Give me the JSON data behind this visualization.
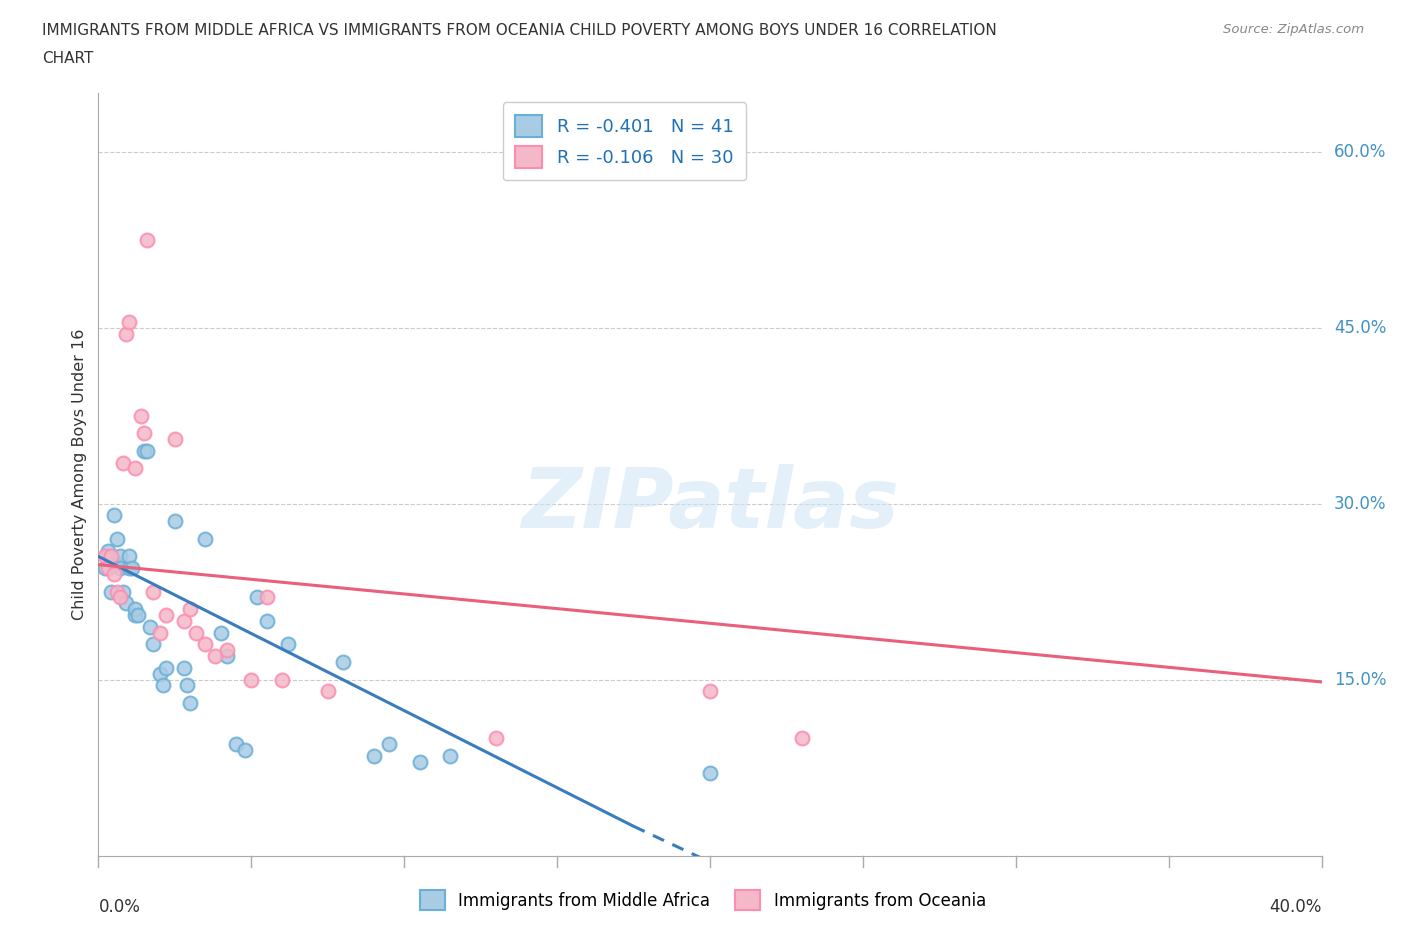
{
  "title_line1": "IMMIGRANTS FROM MIDDLE AFRICA VS IMMIGRANTS FROM OCEANIA CHILD POVERTY AMONG BOYS UNDER 16 CORRELATION",
  "title_line2": "CHART",
  "source_text": "Source: ZipAtlas.com",
  "ylabel": "Child Poverty Among Boys Under 16",
  "xlim": [
    0.0,
    0.4
  ],
  "ylim": [
    0.0,
    0.65
  ],
  "x_tick_positions": [
    0.0,
    0.05,
    0.1,
    0.15,
    0.2,
    0.25,
    0.3,
    0.35,
    0.4
  ],
  "x_tick_labels_show": [
    "0.0%",
    "40.0%"
  ],
  "y_ticks": [
    0.15,
    0.3,
    0.45,
    0.6
  ],
  "y_tick_labels": [
    "15.0%",
    "30.0%",
    "45.0%",
    "60.0%"
  ],
  "watermark": "ZIPatlas",
  "blue_color": "#a8cce4",
  "pink_color": "#f4b8c8",
  "blue_edge_color": "#6baed6",
  "pink_edge_color": "#fc8db0",
  "blue_line_color": "#3a7dbf",
  "pink_line_color": "#e8607a",
  "R_blue": -0.401,
  "N_blue": 41,
  "R_pink": -0.106,
  "N_pink": 30,
  "legend_label_blue": "Immigrants from Middle Africa",
  "legend_label_pink": "Immigrants from Oceania",
  "blue_scatter": [
    [
      0.002,
      0.245
    ],
    [
      0.003,
      0.26
    ],
    [
      0.004,
      0.225
    ],
    [
      0.005,
      0.25
    ],
    [
      0.005,
      0.29
    ],
    [
      0.006,
      0.27
    ],
    [
      0.007,
      0.255
    ],
    [
      0.007,
      0.245
    ],
    [
      0.008,
      0.225
    ],
    [
      0.009,
      0.215
    ],
    [
      0.01,
      0.245
    ],
    [
      0.01,
      0.255
    ],
    [
      0.011,
      0.245
    ],
    [
      0.012,
      0.205
    ],
    [
      0.012,
      0.21
    ],
    [
      0.013,
      0.205
    ],
    [
      0.015,
      0.345
    ],
    [
      0.016,
      0.345
    ],
    [
      0.017,
      0.195
    ],
    [
      0.018,
      0.18
    ],
    [
      0.02,
      0.155
    ],
    [
      0.021,
      0.145
    ],
    [
      0.022,
      0.16
    ],
    [
      0.025,
      0.285
    ],
    [
      0.028,
      0.16
    ],
    [
      0.029,
      0.145
    ],
    [
      0.03,
      0.13
    ],
    [
      0.035,
      0.27
    ],
    [
      0.04,
      0.19
    ],
    [
      0.042,
      0.17
    ],
    [
      0.045,
      0.095
    ],
    [
      0.048,
      0.09
    ],
    [
      0.052,
      0.22
    ],
    [
      0.055,
      0.2
    ],
    [
      0.062,
      0.18
    ],
    [
      0.08,
      0.165
    ],
    [
      0.09,
      0.085
    ],
    [
      0.095,
      0.095
    ],
    [
      0.105,
      0.08
    ],
    [
      0.115,
      0.085
    ],
    [
      0.2,
      0.07
    ]
  ],
  "pink_scatter": [
    [
      0.002,
      0.255
    ],
    [
      0.003,
      0.245
    ],
    [
      0.004,
      0.255
    ],
    [
      0.005,
      0.24
    ],
    [
      0.006,
      0.225
    ],
    [
      0.007,
      0.22
    ],
    [
      0.008,
      0.335
    ],
    [
      0.009,
      0.445
    ],
    [
      0.01,
      0.455
    ],
    [
      0.012,
      0.33
    ],
    [
      0.014,
      0.375
    ],
    [
      0.015,
      0.36
    ],
    [
      0.016,
      0.525
    ],
    [
      0.018,
      0.225
    ],
    [
      0.02,
      0.19
    ],
    [
      0.022,
      0.205
    ],
    [
      0.025,
      0.355
    ],
    [
      0.028,
      0.2
    ],
    [
      0.03,
      0.21
    ],
    [
      0.032,
      0.19
    ],
    [
      0.035,
      0.18
    ],
    [
      0.038,
      0.17
    ],
    [
      0.042,
      0.175
    ],
    [
      0.05,
      0.15
    ],
    [
      0.055,
      0.22
    ],
    [
      0.06,
      0.15
    ],
    [
      0.075,
      0.14
    ],
    [
      0.13,
      0.1
    ],
    [
      0.2,
      0.14
    ],
    [
      0.23,
      0.1
    ]
  ],
  "blue_trendline_solid": [
    [
      0.0,
      0.255
    ],
    [
      0.175,
      0.025
    ]
  ],
  "blue_trendline_dashed": [
    [
      0.175,
      0.025
    ],
    [
      0.22,
      -0.03
    ]
  ],
  "pink_trendline": [
    [
      0.0,
      0.248
    ],
    [
      0.4,
      0.148
    ]
  ],
  "grid_color": "#cccccc",
  "bg_color": "#ffffff",
  "dot_size": 100,
  "dot_linewidth": 1.5
}
